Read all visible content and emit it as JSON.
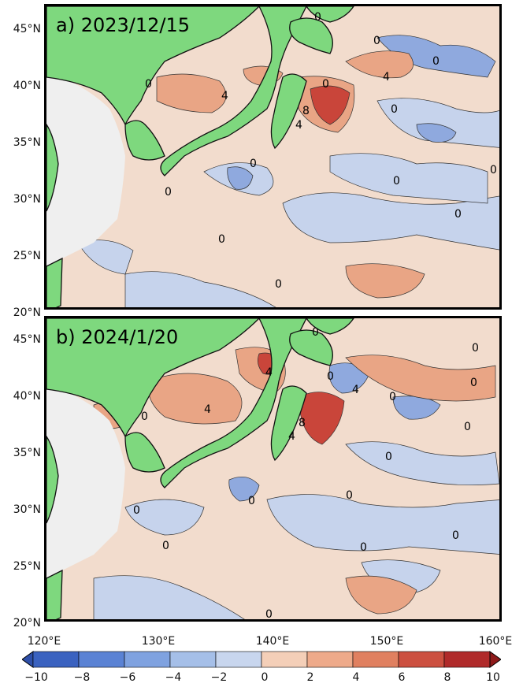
{
  "panels": [
    {
      "label": "a) 2023/12/15"
    },
    {
      "label": "b) 2024/1/20"
    }
  ],
  "y_ticks_a": [
    "45°N",
    "40°N",
    "35°N",
    "30°N",
    "25°N",
    "20°N"
  ],
  "y_ticks_b": [
    "45°N",
    "40°N",
    "35°N",
    "30°N",
    "25°N",
    "20°N"
  ],
  "x_ticks": [
    "120°E",
    "130°E",
    "140°E",
    "150°E",
    "160°E"
  ],
  "contour_labels_a": [
    "0",
    "0",
    "0",
    "0",
    "0",
    "0",
    "0",
    "0",
    "0",
    "0",
    "0",
    "0",
    "0",
    "4",
    "4",
    "4",
    "8"
  ],
  "contour_labels_b": [
    "0",
    "0",
    "0",
    "0",
    "0",
    "0",
    "0",
    "0",
    "0",
    "0",
    "0",
    "0",
    "0",
    "0",
    "0",
    "4",
    "4",
    "4",
    "4",
    "8"
  ],
  "colorbar": {
    "ticks": [
      "−10",
      "−8",
      "−6",
      "−4",
      "−2",
      "0",
      "2",
      "4",
      "6",
      "8",
      "10"
    ],
    "colors": [
      "#3a62c0",
      "#5a82d4",
      "#7fa2e0",
      "#a5bfe8",
      "#c8d6ee",
      "#e6e6ec",
      "#f4cfb8",
      "#eeaa8a",
      "#e08060",
      "#cc5040",
      "#b02a2a"
    ]
  },
  "colors": {
    "land": "#7ed87e",
    "china": "#efefef",
    "sea": "#f2dccd"
  }
}
